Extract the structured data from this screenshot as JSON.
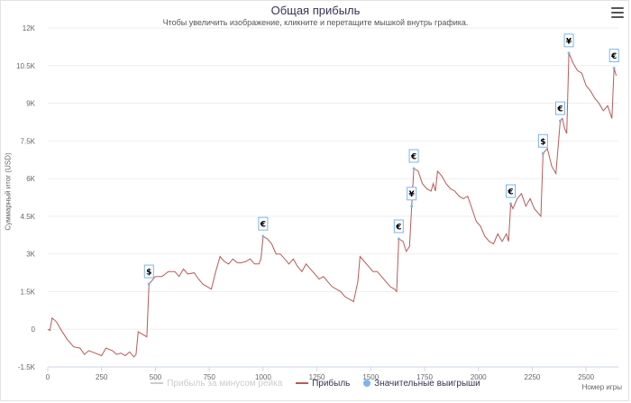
{
  "chart_data": {
    "type": "line",
    "title": "Общая прибыль",
    "subtitle": "Чтобы увеличить изображение, кликните и перетащите мышкой внутрь графика.",
    "ylabel": "Суммарный итог (USD)",
    "xlabel": "Номер игры",
    "xlim": [
      0,
      2650
    ],
    "ylim": [
      -1500,
      12000
    ],
    "x_ticks": [
      0,
      250,
      500,
      750,
      1000,
      1250,
      1500,
      1750,
      2000,
      2250,
      2500
    ],
    "y_ticks": [
      -1500,
      0,
      1500,
      3000,
      4500,
      6000,
      7500,
      9000,
      10500,
      12000
    ],
    "y_tick_labels": [
      "-1.5K",
      "0",
      "1.5K",
      "3K",
      "4.5K",
      "6K",
      "7.5K",
      "9K",
      "10.5K",
      "12K"
    ],
    "grid": true,
    "legend_position": "bottom",
    "series": [
      {
        "name": "Прибыль за минусом рейка",
        "color": "#cccccc",
        "visible": false,
        "points": []
      },
      {
        "name": "Прибыль",
        "color": "#b85a5a",
        "visible": true,
        "points": [
          [
            0,
            0
          ],
          [
            10,
            -50
          ],
          [
            20,
            450
          ],
          [
            40,
            300
          ],
          [
            60,
            0
          ],
          [
            90,
            -400
          ],
          [
            120,
            -700
          ],
          [
            150,
            -750
          ],
          [
            170,
            -1000
          ],
          [
            190,
            -850
          ],
          [
            220,
            -950
          ],
          [
            250,
            -1050
          ],
          [
            270,
            -750
          ],
          [
            300,
            -850
          ],
          [
            320,
            -1000
          ],
          [
            340,
            -950
          ],
          [
            360,
            -1050
          ],
          [
            380,
            -900
          ],
          [
            400,
            -1100
          ],
          [
            410,
            -1000
          ],
          [
            420,
            -100
          ],
          [
            440,
            -200
          ],
          [
            460,
            -300
          ],
          [
            470,
            1800
          ],
          [
            500,
            2100
          ],
          [
            530,
            2100
          ],
          [
            560,
            2300
          ],
          [
            590,
            2300
          ],
          [
            610,
            2100
          ],
          [
            630,
            2400
          ],
          [
            650,
            2200
          ],
          [
            680,
            2250
          ],
          [
            700,
            2000
          ],
          [
            720,
            1800
          ],
          [
            740,
            1700
          ],
          [
            760,
            1600
          ],
          [
            780,
            2300
          ],
          [
            800,
            2900
          ],
          [
            820,
            2700
          ],
          [
            840,
            2600
          ],
          [
            860,
            2800
          ],
          [
            880,
            2650
          ],
          [
            900,
            2650
          ],
          [
            920,
            2700
          ],
          [
            940,
            2800
          ],
          [
            960,
            2600
          ],
          [
            980,
            2600
          ],
          [
            990,
            2800
          ],
          [
            1000,
            3700
          ],
          [
            1020,
            3600
          ],
          [
            1040,
            3400
          ],
          [
            1060,
            3000
          ],
          [
            1080,
            3000
          ],
          [
            1100,
            2800
          ],
          [
            1120,
            2600
          ],
          [
            1140,
            2800
          ],
          [
            1160,
            2500
          ],
          [
            1180,
            2300
          ],
          [
            1200,
            2600
          ],
          [
            1220,
            2400
          ],
          [
            1240,
            2200
          ],
          [
            1260,
            2000
          ],
          [
            1280,
            2100
          ],
          [
            1300,
            1900
          ],
          [
            1320,
            1700
          ],
          [
            1340,
            1600
          ],
          [
            1360,
            1500
          ],
          [
            1380,
            1300
          ],
          [
            1400,
            1200
          ],
          [
            1420,
            1100
          ],
          [
            1440,
            1900
          ],
          [
            1450,
            2900
          ],
          [
            1470,
            2700
          ],
          [
            1490,
            2500
          ],
          [
            1510,
            2300
          ],
          [
            1530,
            2300
          ],
          [
            1550,
            2100
          ],
          [
            1570,
            1900
          ],
          [
            1590,
            1700
          ],
          [
            1610,
            1600
          ],
          [
            1620,
            1500
          ],
          [
            1630,
            3600
          ],
          [
            1650,
            3500
          ],
          [
            1665,
            3100
          ],
          [
            1680,
            3300
          ],
          [
            1690,
            4900
          ],
          [
            1700,
            6400
          ],
          [
            1720,
            6300
          ],
          [
            1740,
            5800
          ],
          [
            1760,
            5600
          ],
          [
            1780,
            5500
          ],
          [
            1790,
            5800
          ],
          [
            1800,
            5500
          ],
          [
            1810,
            6300
          ],
          [
            1830,
            6100
          ],
          [
            1850,
            5800
          ],
          [
            1870,
            5600
          ],
          [
            1890,
            5500
          ],
          [
            1910,
            5300
          ],
          [
            1930,
            5200
          ],
          [
            1950,
            5300
          ],
          [
            1970,
            4800
          ],
          [
            1990,
            4300
          ],
          [
            2010,
            4100
          ],
          [
            2030,
            3700
          ],
          [
            2050,
            3500
          ],
          [
            2070,
            3400
          ],
          [
            2090,
            3800
          ],
          [
            2110,
            3500
          ],
          [
            2130,
            3800
          ],
          [
            2140,
            3500
          ],
          [
            2150,
            5000
          ],
          [
            2160,
            4800
          ],
          [
            2180,
            5200
          ],
          [
            2200,
            5400
          ],
          [
            2220,
            4900
          ],
          [
            2240,
            5200
          ],
          [
            2260,
            4800
          ],
          [
            2280,
            4600
          ],
          [
            2290,
            4500
          ],
          [
            2300,
            7000
          ],
          [
            2320,
            7200
          ],
          [
            2340,
            6500
          ],
          [
            2360,
            6200
          ],
          [
            2380,
            8300
          ],
          [
            2390,
            8400
          ],
          [
            2400,
            8000
          ],
          [
            2410,
            7800
          ],
          [
            2420,
            11000
          ],
          [
            2440,
            10600
          ],
          [
            2460,
            10300
          ],
          [
            2480,
            10200
          ],
          [
            2500,
            9700
          ],
          [
            2520,
            9500
          ],
          [
            2540,
            9200
          ],
          [
            2560,
            9000
          ],
          [
            2580,
            8700
          ],
          [
            2600,
            8900
          ],
          [
            2620,
            8400
          ],
          [
            2630,
            10400
          ],
          [
            2640,
            10100
          ]
        ]
      }
    ],
    "big_wins": {
      "name": "Значительные выигрыши",
      "color": "#7cb5ec",
      "markers": [
        {
          "x": 470,
          "y": 1800,
          "symbol": "$"
        },
        {
          "x": 1000,
          "y": 3700,
          "symbol": "€"
        },
        {
          "x": 1630,
          "y": 3600,
          "symbol": "€"
        },
        {
          "x": 1690,
          "y": 4900,
          "symbol": "¥"
        },
        {
          "x": 1700,
          "y": 6400,
          "symbol": "€"
        },
        {
          "x": 2150,
          "y": 5000,
          "symbol": "€"
        },
        {
          "x": 2300,
          "y": 7000,
          "symbol": "$"
        },
        {
          "x": 2380,
          "y": 8300,
          "symbol": "€"
        },
        {
          "x": 2420,
          "y": 11000,
          "symbol": "¥"
        },
        {
          "x": 2630,
          "y": 10400,
          "symbol": "€"
        }
      ]
    }
  }
}
